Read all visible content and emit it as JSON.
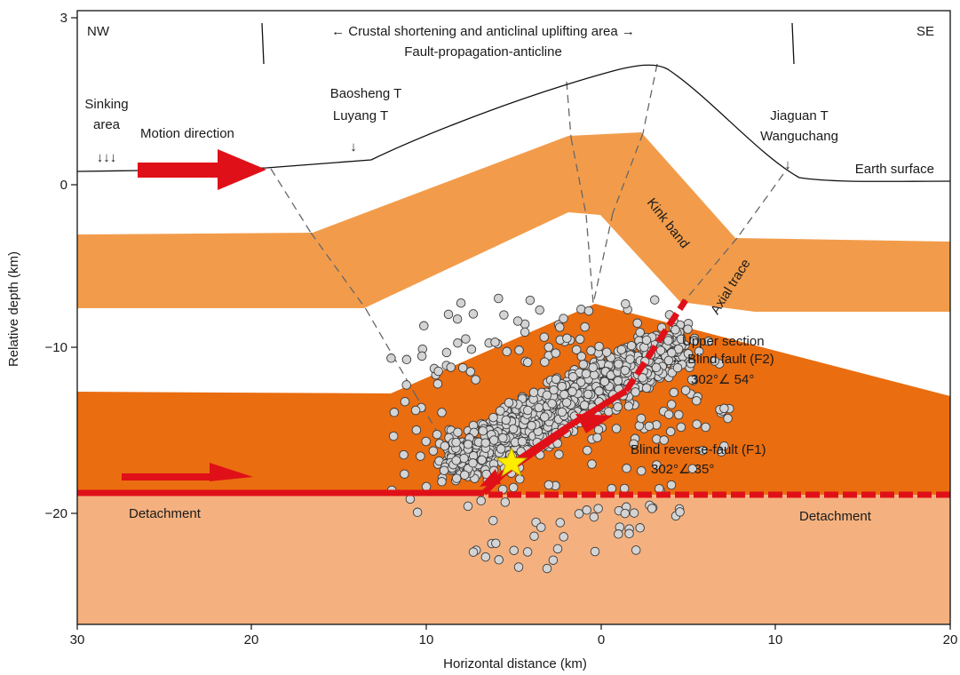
{
  "figure": {
    "x_axis_title": "Horizontal distance (km)",
    "y_axis_title": "Relative depth (km)",
    "x_ticks": [
      "30",
      "20",
      "10",
      "0",
      "10",
      "20"
    ],
    "y_ticks": [
      "3",
      "0",
      "−10",
      "−20"
    ],
    "corner_left": "NW",
    "corner_right": "SE",
    "top_title_line1": "← Crustal shortening and anticlinal uplifting area →",
    "top_title_line2": "Fault-propagation-anticline",
    "sinking_line1": "Sinking",
    "sinking_line2": "area",
    "sinking_arrows": "↓↓↓",
    "motion_direction": "Motion direction",
    "town_left_1": "Baosheng T",
    "town_left_2": "Luyang T",
    "town_right_1": "Jiaguan T",
    "town_right_2": "Wanguchang",
    "small_arrow": "↓",
    "earth_surface": "Earth surface",
    "kink_band": "Kink band",
    "axial_trace": "Axial trace",
    "upper_section": "Upper  section",
    "blind_fault_f2": "← Blind fault (F2)",
    "f2_attitude": "302°∠ 54°",
    "blind_reverse_fault_f1": "Blind reverse-fault (F1)",
    "f1_attitude": "302°∠ 35°",
    "detachment_left": "Detachment",
    "detachment_right": "Detachment"
  },
  "colors": {
    "upper_layer": "#f29c4b",
    "middle_layer": "#ea6d10",
    "basement": "#f4b17f",
    "fault_red": "#e01018",
    "event_fill": "#d4d4d4",
    "mainshock_star": "#ffec00"
  },
  "hypocenters": {
    "marker": "open-circle",
    "depth_range_km": [
      -6.5,
      -24
    ],
    "distance_range_km": [
      -10.5,
      11
    ]
  }
}
